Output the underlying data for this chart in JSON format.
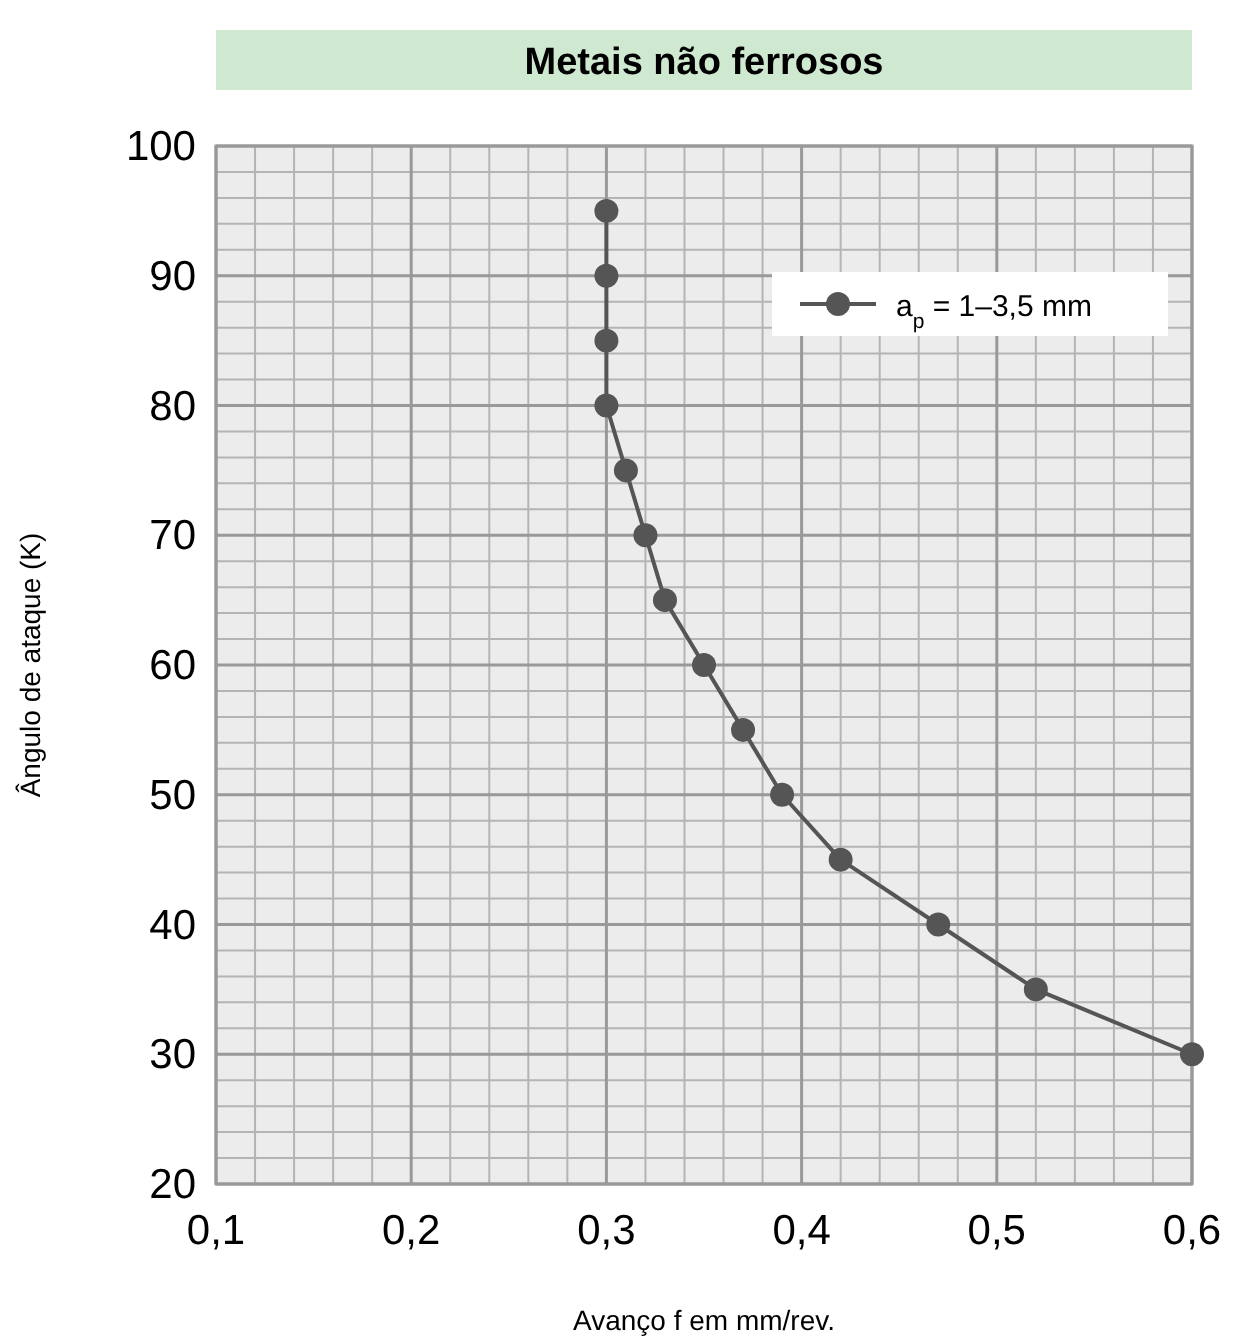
{
  "chart_data": {
    "type": "line",
    "title": "Metais não ferrosos",
    "xlabel": "Avanço f em mm/rev.",
    "ylabel": "Ângulo de ataque (K)",
    "xlim": [
      0.1,
      0.6
    ],
    "ylim": [
      20,
      100
    ],
    "xticks": [
      {
        "value": 0.1,
        "label": "0,1"
      },
      {
        "value": 0.2,
        "label": "0,2"
      },
      {
        "value": 0.3,
        "label": "0,3"
      },
      {
        "value": 0.4,
        "label": "0,4"
      },
      {
        "value": 0.5,
        "label": "0,5"
      },
      {
        "value": 0.6,
        "label": "0,6"
      }
    ],
    "yticks": [
      20,
      30,
      40,
      50,
      60,
      70,
      80,
      90,
      100
    ],
    "grid": true,
    "legend": "top right",
    "marker": "circle",
    "line_style": "solid",
    "series": [
      {
        "name": "a$_{p}$ = 1–3,5 mm",
        "color": "#555555",
        "x": [
          0.3,
          0.3,
          0.3,
          0.3,
          0.31,
          0.32,
          0.33,
          0.35,
          0.37,
          0.39,
          0.42,
          0.47,
          0.52,
          0.6
        ],
        "values": [
          95,
          90,
          85,
          80,
          75,
          70,
          65,
          60,
          55,
          50,
          45,
          40,
          35,
          30
        ]
      }
    ]
  }
}
